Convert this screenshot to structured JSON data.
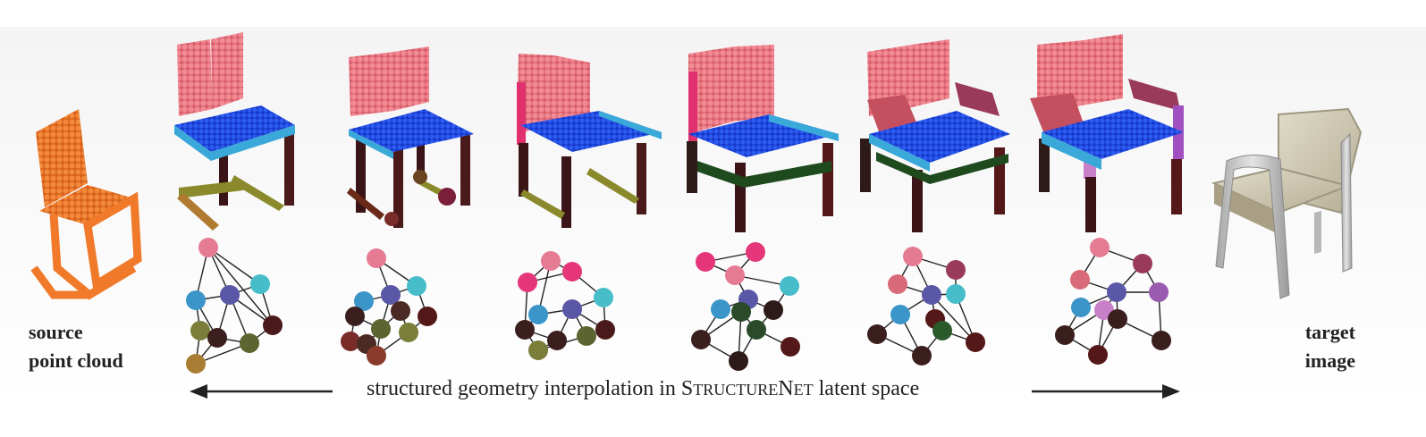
{
  "labels": {
    "source_line1": "source",
    "source_line2": "point cloud",
    "target_line1": "target",
    "target_line2": "image"
  },
  "caption": {
    "before": "structured geometry interpolation in ",
    "sc_parts": [
      "S",
      "TRUCTURE",
      "N",
      "ET"
    ],
    "after": " latent space"
  },
  "colors": {
    "source_cloud": "#ef7a2e",
    "seat": "#1f4fe8",
    "back": "#ec7b86",
    "seat_frame": "#3aa8d8",
    "leg": "#3a1416",
    "bar_olive": "#8a8a2c",
    "arm": "#c4505f",
    "target_chair": "#cfcab5"
  },
  "graph_node_colors": [
    [
      "#e57b93",
      "#3b95c9",
      "#5a58a6",
      "#47bdc9",
      "#7b7d3a",
      "#3b1f1e",
      "#5c642f",
      "#4a1a1a",
      "#a87d33"
    ],
    [
      "#e57b93",
      "#3b95c9",
      "#5a58a6",
      "#47bdc9",
      "#3b1f1e",
      "#4a2a22",
      "#551818",
      "#7a2c28",
      "#5c642f",
      "#7b7d3a",
      "#4a2a22",
      "#8a3a2a"
    ],
    [
      "#e5367a",
      "#e57b93",
      "#e5367a",
      "#47bdc9",
      "#3b95c9",
      "#5a58a6",
      "#3b1f1e",
      "#3b1f1e",
      "#5c642f",
      "#4a1a1a",
      "#7b7d3a"
    ],
    [
      "#e5367a",
      "#e5367a",
      "#e57b93",
      "#47bdc9",
      "#5a58a6",
      "#3b95c9",
      "#2a4a2a",
      "#2e1a18",
      "#2a4a2a",
      "#3b1f1e",
      "#2e1a18",
      "#551818"
    ],
    [
      "#e57b93",
      "#9a3a5a",
      "#d86a7a",
      "#5a58a6",
      "#47bdc9",
      "#3b95c9",
      "#551818",
      "#3b1f1e",
      "#2a5a2a",
      "#551818",
      "#3b1f1e"
    ],
    [
      "#e57b93",
      "#9a3a5a",
      "#d86a7a",
      "#5a58a6",
      "#9a5ab0",
      "#3b95c9",
      "#c880c8",
      "#3b1f1e",
      "#3b1f1e",
      "#551818",
      "#3b1f1e"
    ]
  ]
}
